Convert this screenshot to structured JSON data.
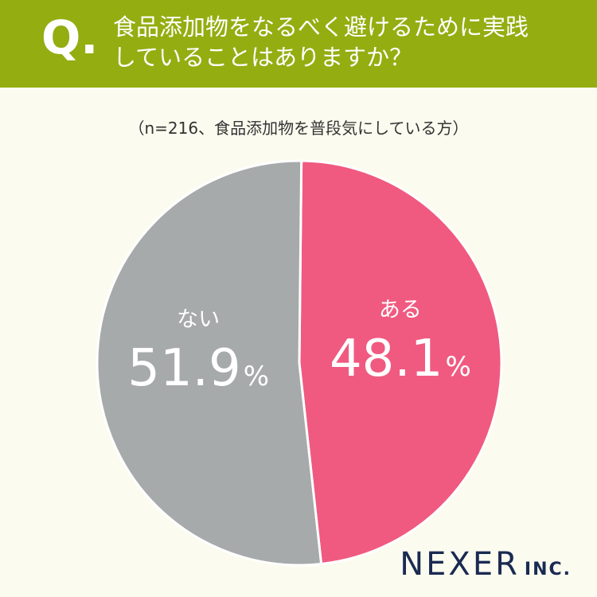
{
  "header": {
    "q_label": "Q.",
    "question_line1": "食品添加物をなるべく避けるために実践",
    "question_line2": "していることはありますか？"
  },
  "note": "（n=216、食品添加物を普段気にしている方）",
  "chart_data": {
    "type": "pie",
    "categories": [
      "ある",
      "ない"
    ],
    "values": [
      48.1,
      51.9
    ],
    "value_labels": [
      "48.1",
      "51.9"
    ],
    "unit": "%",
    "colors": [
      "#f05a80",
      "#a7aaaa"
    ]
  },
  "logo": {
    "main": "NEXER",
    "sub": "INC."
  }
}
